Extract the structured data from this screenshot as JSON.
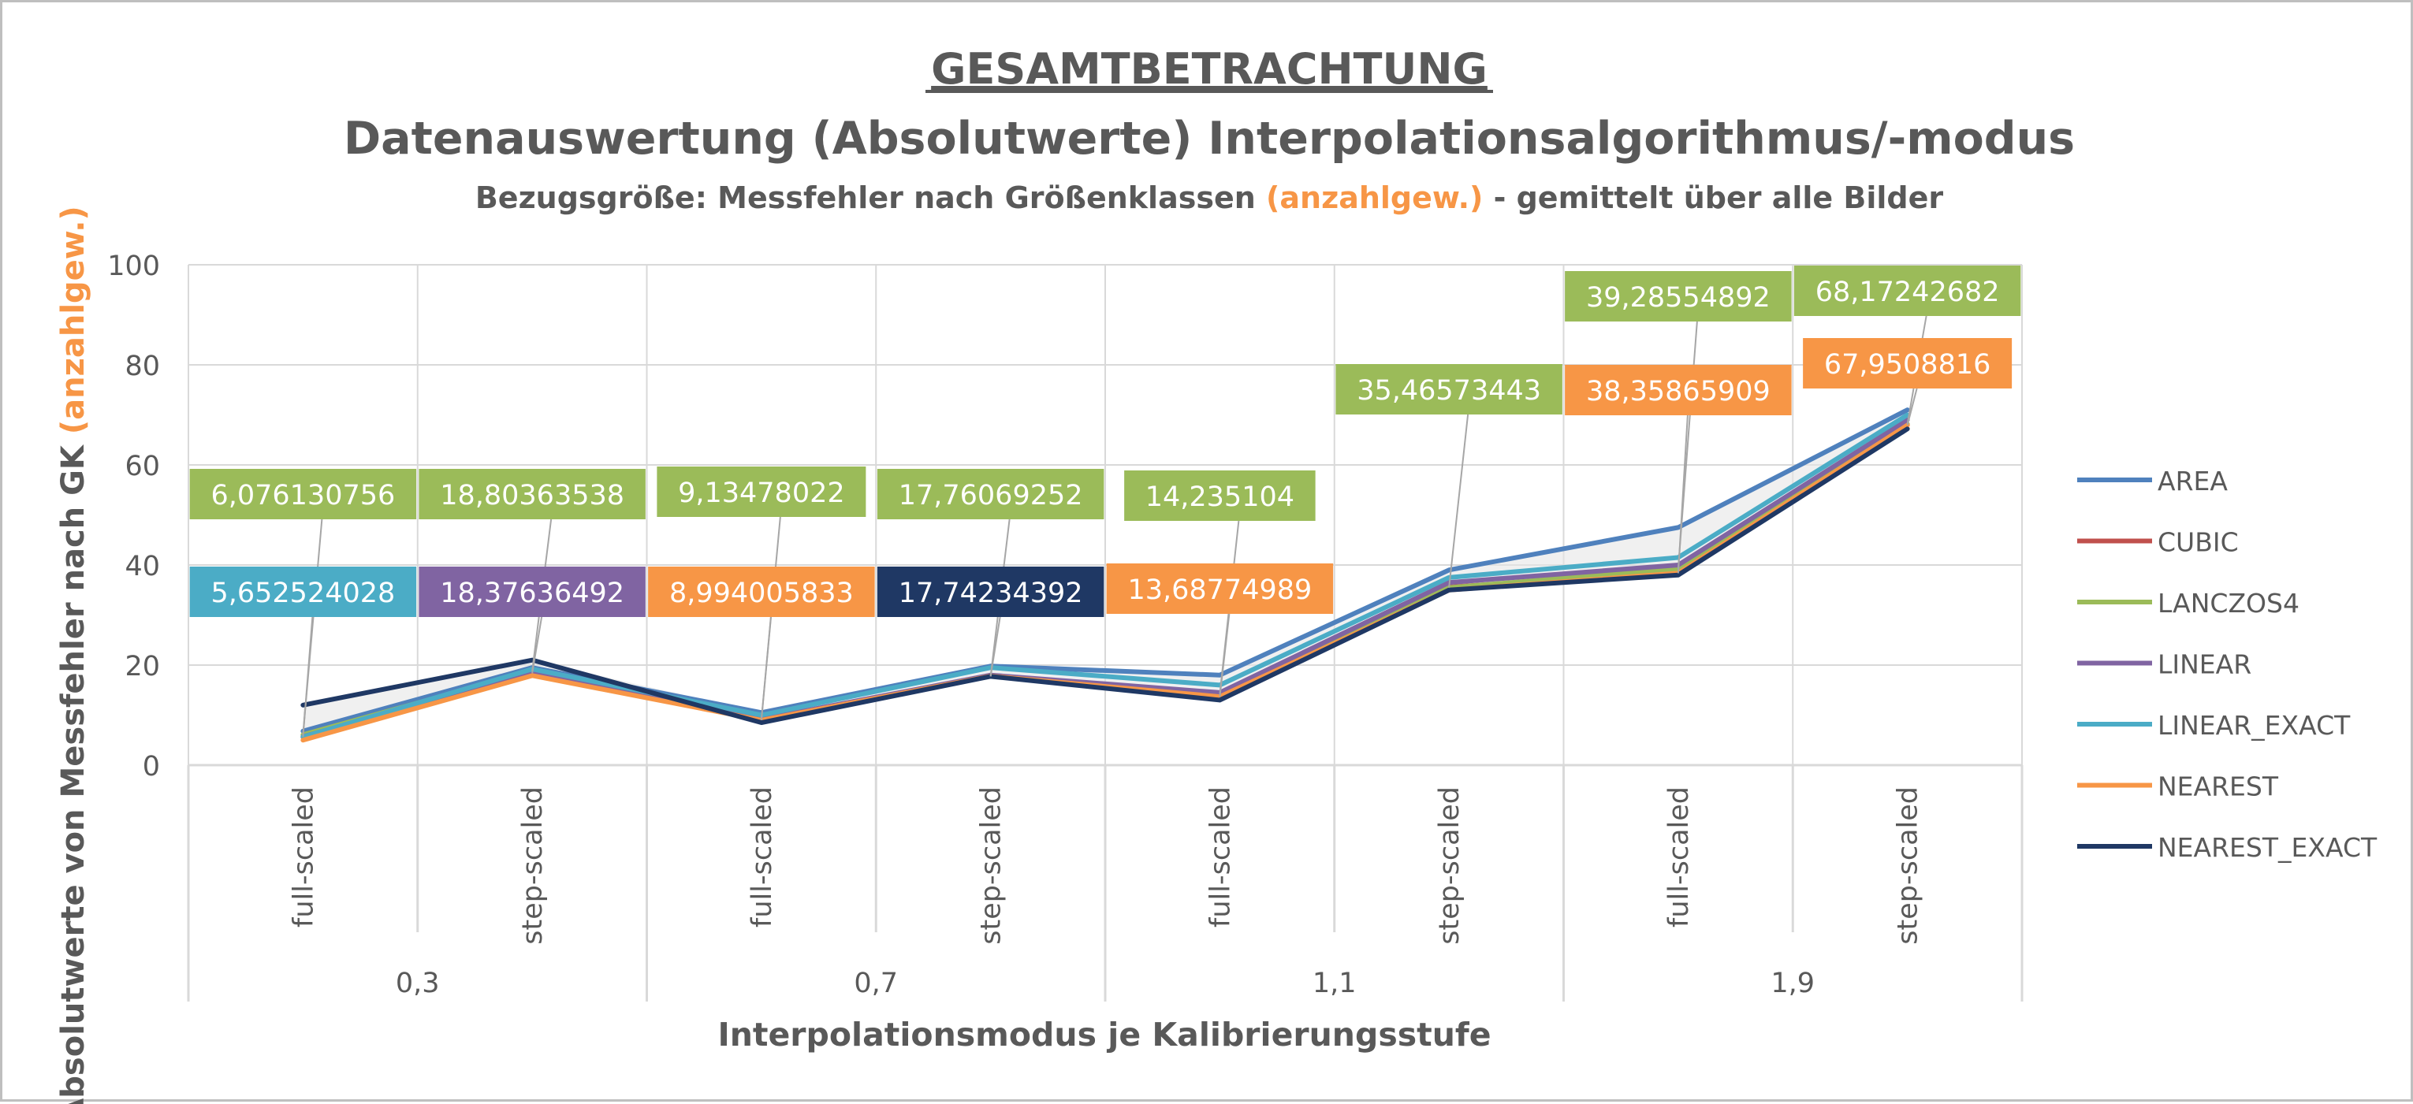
{
  "chart_data": {
    "type": "line",
    "title": "GESAMTBETRACHTUNG",
    "subtitle": "Datenauswertung (Absolutwerte) Interpolationsalgorithmus/-modus",
    "subsubtitle": {
      "prefix": "Bezugsgröße: Messfehler nach Größenklassen ",
      "highlight": "(anzahlgew.)",
      "suffix": " - gemittelt über alle Bilder"
    },
    "ylabel": {
      "main": "Absolutwerte von Messfehler nach GK ",
      "highlight": "(anzahlgew.)"
    },
    "xlabel": "Interpolationsmodus je Kalibrierungsstufe",
    "ylim": [
      0,
      100
    ],
    "yticks": [
      "0",
      "20",
      "40",
      "60",
      "80",
      "100"
    ],
    "categories": [
      "full-scaled",
      "step-scaled",
      "full-scaled",
      "step-scaled",
      "full-scaled",
      "step-scaled",
      "full-scaled",
      "step-scaled"
    ],
    "groups": [
      "0,3",
      "0,7",
      "1,1",
      "1,9"
    ],
    "grid": true,
    "legend_position": "right",
    "highlight_color": "#f79646",
    "series": [
      {
        "name": "AREA",
        "color": "#4f81bd",
        "values": [
          6.8,
          19.5,
          10.5,
          19.8,
          18.0,
          39.0,
          47.5,
          71.0
        ]
      },
      {
        "name": "CUBIC",
        "color": "#c0504d",
        "values": [
          5.6,
          18.5,
          9.0,
          17.9,
          13.8,
          35.6,
          38.5,
          68.0
        ]
      },
      {
        "name": "LANCZOS4",
        "color": "#9bbb59",
        "values": [
          6.076130756,
          18.80363538,
          9.13478022,
          17.76069252,
          14.235104,
          35.46573443,
          39.28554892,
          68.17242682
        ]
      },
      {
        "name": "LINEAR",
        "color": "#8064a2",
        "values": [
          5.7,
          18.37636492,
          9.2,
          18.0,
          14.5,
          36.5,
          40.0,
          69.0
        ]
      },
      {
        "name": "LINEAR_EXACT",
        "color": "#4bacc6",
        "values": [
          5.652524028,
          19.2,
          10.0,
          19.5,
          16.0,
          37.5,
          41.5,
          70.0
        ]
      },
      {
        "name": "NEAREST",
        "color": "#f79646",
        "values": [
          5.0,
          17.9,
          8.994005833,
          17.8,
          13.68774989,
          35.0,
          38.35865909,
          67.9508816
        ]
      },
      {
        "name": "NEAREST_EXACT",
        "color": "#1f3864",
        "values": [
          12.0,
          21.0,
          8.5,
          17.74234392,
          13.0,
          35.0,
          38.0,
          67.2
        ]
      }
    ],
    "data_labels": [
      {
        "series": "LANCZOS4",
        "index": 0,
        "text": "6,076130756",
        "bg": "#9bbb59",
        "row": "upper"
      },
      {
        "series": "LINEAR_EXACT",
        "index": 0,
        "text": "5,652524028",
        "bg": "#4bacc6",
        "row": "lower"
      },
      {
        "series": "LANCZOS4",
        "index": 1,
        "text": "18,80363538",
        "bg": "#9bbb59",
        "row": "upper"
      },
      {
        "series": "LINEAR",
        "index": 1,
        "text": "18,37636492",
        "bg": "#8064a2",
        "row": "lower"
      },
      {
        "series": "LANCZOS4",
        "index": 2,
        "text": "9,13478022",
        "bg": "#9bbb59",
        "row": "upper"
      },
      {
        "series": "NEAREST",
        "index": 2,
        "text": "8,994005833",
        "bg": "#f79646",
        "row": "lower"
      },
      {
        "series": "LANCZOS4",
        "index": 3,
        "text": "17,76069252",
        "bg": "#9bbb59",
        "row": "upper"
      },
      {
        "series": "NEAREST_EXACT",
        "index": 3,
        "text": "17,74234392",
        "bg": "#1f3864",
        "row": "lower"
      },
      {
        "series": "LANCZOS4",
        "index": 4,
        "text": "14,235104",
        "bg": "#9bbb59",
        "row": "upper"
      },
      {
        "series": "NEAREST",
        "index": 4,
        "text": "13,68774989",
        "bg": "#f79646",
        "row": "lower"
      },
      {
        "series": "LANCZOS4",
        "index": 5,
        "text": "35,46573443",
        "bg": "#9bbb59",
        "row": "upper"
      },
      {
        "series": "LANCZOS4",
        "index": 6,
        "text": "39,28554892",
        "bg": "#9bbb59",
        "row": "upper"
      },
      {
        "series": "NEAREST",
        "index": 6,
        "text": "38,35865909",
        "bg": "#f79646",
        "row": "lower"
      },
      {
        "series": "LANCZOS4",
        "index": 7,
        "text": "68,17242682",
        "bg": "#9bbb59",
        "row": "upper"
      },
      {
        "series": "NEAREST",
        "index": 7,
        "text": "67,9508816",
        "bg": "#f79646",
        "row": "lower"
      }
    ]
  }
}
